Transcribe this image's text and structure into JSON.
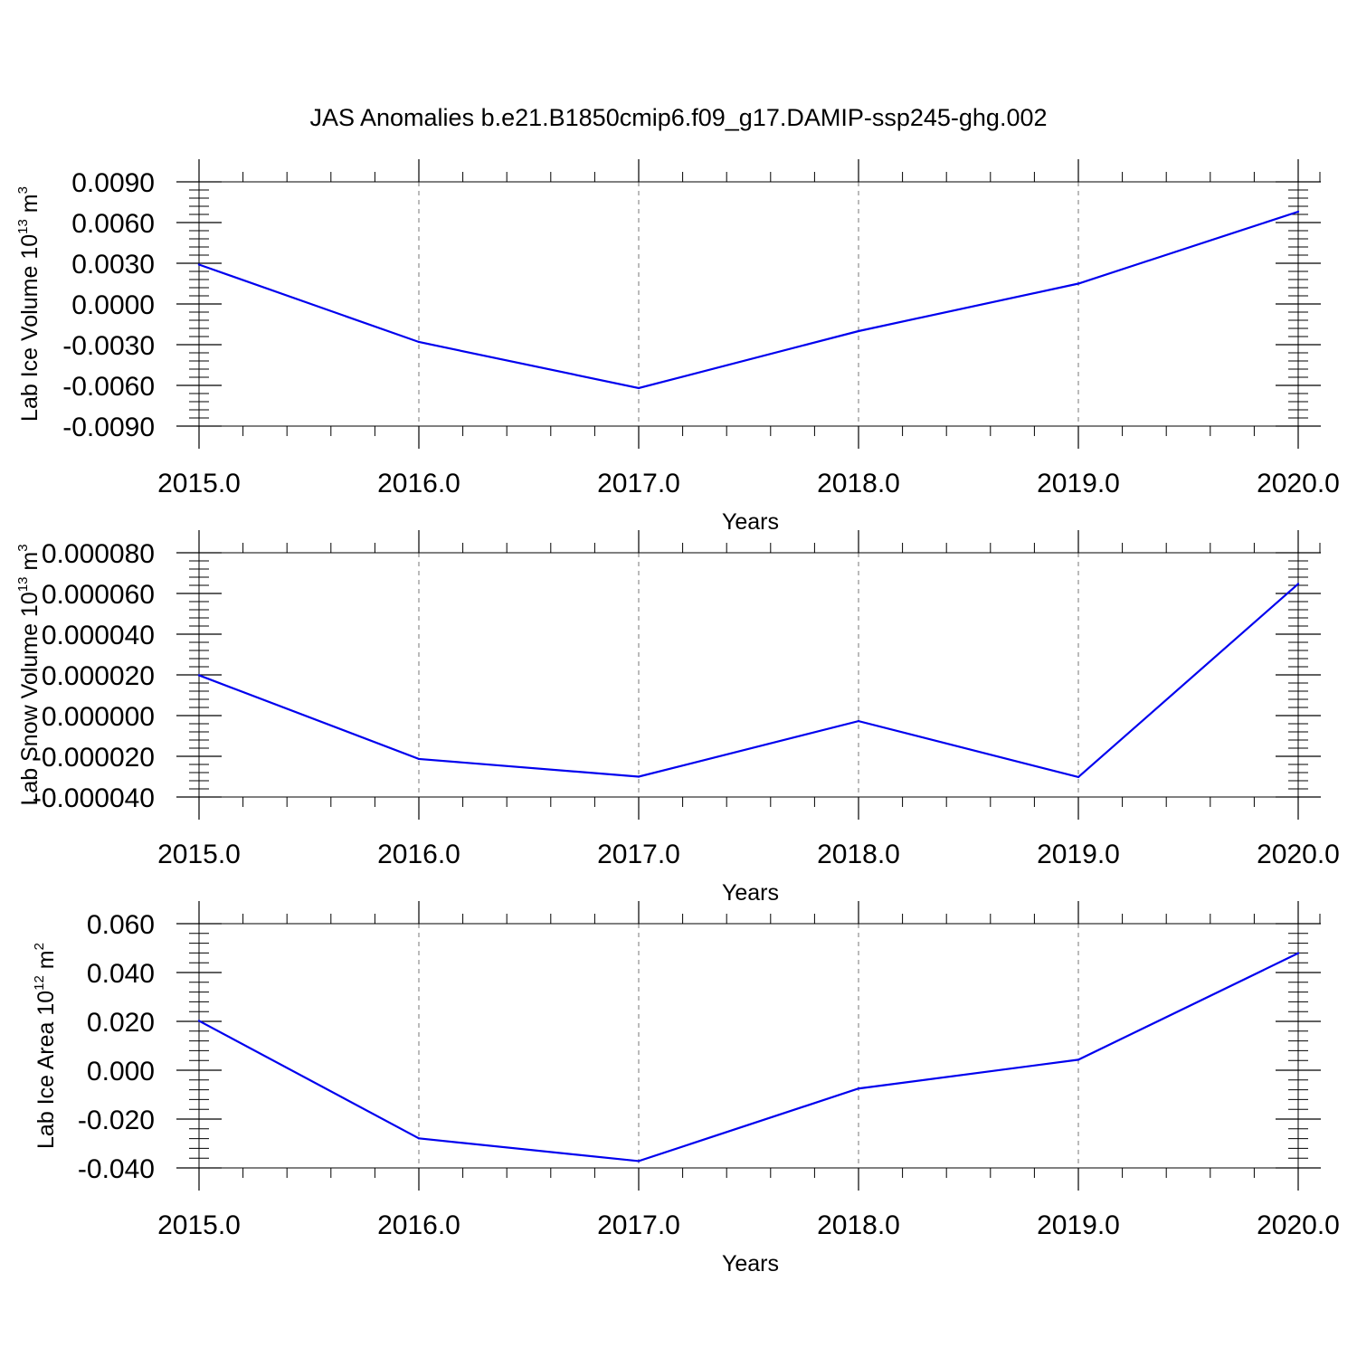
{
  "figure": {
    "title": "JAS Anomalies b.e21.B1850cmip6.f09_g17.DAMIP-ssp245-ghg.002"
  },
  "chart_data": [
    {
      "type": "line",
      "ylabel": {
        "base": "Lab Ice Volume 10",
        "sup": "13",
        "unit": " m",
        "unit_sup": "3"
      },
      "xlabel": "Years",
      "x": [
        2015,
        2016,
        2017,
        2018,
        2019,
        2020
      ],
      "y": [
        0.0029,
        -0.0028,
        -0.0062,
        -0.002,
        0.0015,
        0.0068
      ],
      "xlim": [
        2015,
        2020
      ],
      "ylim": [
        -0.009,
        0.009
      ],
      "yticks": [
        0.009,
        0.006,
        0.003,
        0.0,
        -0.003,
        -0.006,
        -0.009
      ],
      "yticklabels": [
        "0.0090",
        "0.0060",
        "0.0030",
        "0.0000",
        "-0.0030",
        "-0.0060",
        "-0.0090"
      ],
      "xticklabels": [
        "2015.0",
        "2016.0",
        "2017.0",
        "2018.0",
        "2019.0",
        "2020.0"
      ],
      "line_color": "#0000ee",
      "grid": "vertical dashed"
    },
    {
      "type": "line",
      "ylabel": {
        "base": "Lab Snow Volume 10",
        "sup": "13",
        "unit": " m",
        "unit_sup": "3"
      },
      "xlabel": "Years",
      "x": [
        2015,
        2016,
        2017,
        2018,
        2019,
        2020
      ],
      "y": [
        1.98e-05,
        -2.13e-05,
        -3e-05,
        -2.7e-06,
        -3.02e-05,
        6.47e-05
      ],
      "xlim": [
        2015,
        2020
      ],
      "ylim": [
        -4e-05,
        8e-05
      ],
      "yticks": [
        8e-05,
        6e-05,
        4e-05,
        2e-05,
        0.0,
        -2e-05,
        -4e-05
      ],
      "yticklabels": [
        "0.000080",
        "0.000060",
        "0.000040",
        "0.000020",
        "0.000000",
        "-0.000020",
        "-0.000040"
      ],
      "xticklabels": [
        "2015.0",
        "2016.0",
        "2017.0",
        "2018.0",
        "2019.0",
        "2020.0"
      ],
      "line_color": "#0000ee",
      "grid": "vertical dashed"
    },
    {
      "type": "line",
      "ylabel": {
        "base": "Lab Ice Area 10",
        "sup": "12",
        "unit": " m",
        "unit_sup": "2"
      },
      "xlabel": "Years",
      "x": [
        2015,
        2016,
        2017,
        2018,
        2019,
        2020
      ],
      "y": [
        0.0202,
        -0.0279,
        -0.0372,
        -0.0075,
        0.0043,
        0.0479
      ],
      "xlim": [
        2015,
        2020
      ],
      "ylim": [
        -0.04,
        0.06
      ],
      "yticks": [
        0.06,
        0.04,
        0.02,
        0.0,
        -0.02,
        -0.04
      ],
      "yticklabels": [
        "0.060",
        "0.040",
        "0.020",
        "0.000",
        "-0.020",
        "-0.040"
      ],
      "xticklabels": [
        "2015.0",
        "2016.0",
        "2017.0",
        "2018.0",
        "2019.0",
        "2020.0"
      ],
      "line_color": "#0000ee",
      "grid": "vertical dashed"
    }
  ]
}
